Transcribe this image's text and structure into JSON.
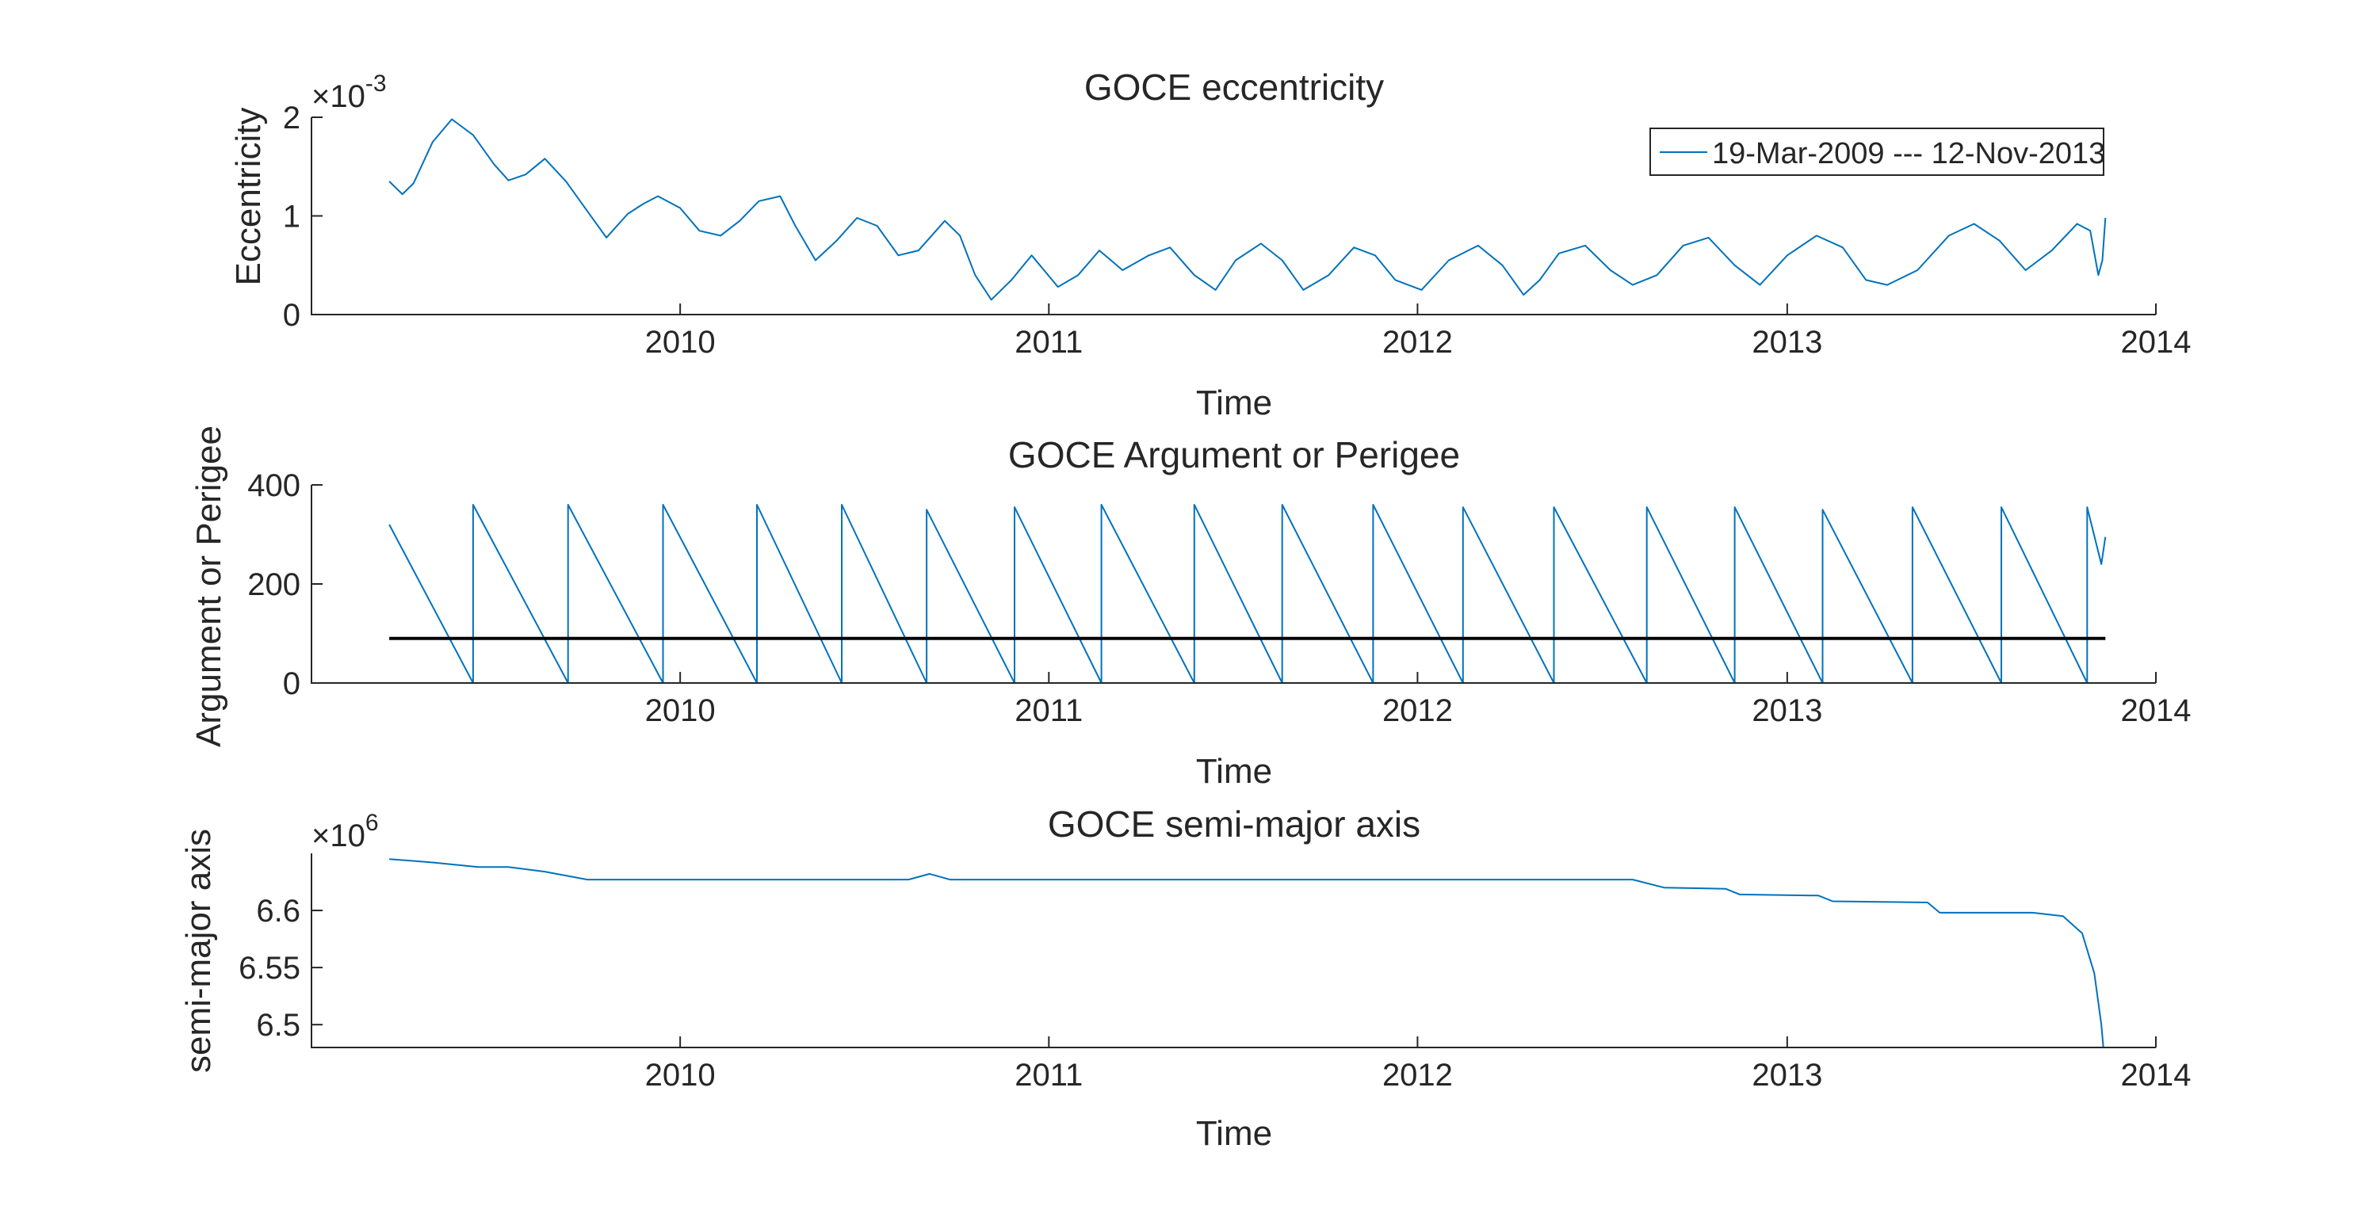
{
  "chart_data": [
    {
      "type": "line",
      "title": "GOCE eccentricity",
      "xlabel": "Time",
      "ylabel": "Eccentricity",
      "y_exponent": {
        "base": "×10",
        "power": "-3"
      },
      "xlim": [
        "2009-01-01",
        "2014-01-01"
      ],
      "ylim": [
        0,
        0.002
      ],
      "xticks": [
        {
          "date": "2010-01-01",
          "label": "2010"
        },
        {
          "date": "2011-01-01",
          "label": "2011"
        },
        {
          "date": "2012-01-01",
          "label": "2012"
        },
        {
          "date": "2013-01-01",
          "label": "2013"
        },
        {
          "date": "2014-01-01",
          "label": "2014"
        }
      ],
      "yticks": [
        {
          "value": 0,
          "label": "0"
        },
        {
          "value": 0.001,
          "label": "1"
        },
        {
          "value": 0.002,
          "label": "2"
        }
      ],
      "grid": false,
      "legend_position": "top-right",
      "legend": [
        "19-Mar-2009 --- 12-Nov-2013"
      ],
      "series": [
        {
          "name": "19-Mar-2009 --- 12-Nov-2013",
          "color": "#0072BD",
          "points": [
            [
              "2009-03-19",
              0.00135
            ],
            [
              "2009-04-01",
              0.00122
            ],
            [
              "2009-04-12",
              0.00133
            ],
            [
              "2009-05-01",
              0.00175
            ],
            [
              "2009-05-20",
              0.00198
            ],
            [
              "2009-06-10",
              0.00182
            ],
            [
              "2009-07-01",
              0.00152
            ],
            [
              "2009-07-15",
              0.00136
            ],
            [
              "2009-08-01",
              0.00142
            ],
            [
              "2009-08-20",
              0.00158
            ],
            [
              "2009-09-10",
              0.00135
            ],
            [
              "2009-10-01",
              0.00105
            ],
            [
              "2009-10-20",
              0.00078
            ],
            [
              "2009-11-10",
              0.00102
            ],
            [
              "2009-11-25",
              0.00112
            ],
            [
              "2009-12-10",
              0.0012
            ],
            [
              "2010-01-01",
              0.00108
            ],
            [
              "2010-01-20",
              0.00085
            ],
            [
              "2010-02-10",
              0.0008
            ],
            [
              "2010-03-01",
              0.00095
            ],
            [
              "2010-03-20",
              0.00115
            ],
            [
              "2010-04-10",
              0.0012
            ],
            [
              "2010-04-25",
              0.0009
            ],
            [
              "2010-05-15",
              0.00055
            ],
            [
              "2010-06-05",
              0.00075
            ],
            [
              "2010-06-25",
              0.00098
            ],
            [
              "2010-07-15",
              0.0009
            ],
            [
              "2010-08-05",
              0.0006
            ],
            [
              "2010-08-25",
              0.00065
            ],
            [
              "2010-09-20",
              0.00095
            ],
            [
              "2010-10-05",
              0.0008
            ],
            [
              "2010-10-20",
              0.0004
            ],
            [
              "2010-11-05",
              0.00015
            ],
            [
              "2010-11-25",
              0.00035
            ],
            [
              "2010-12-15",
              0.0006
            ],
            [
              "2011-01-10",
              0.00028
            ],
            [
              "2011-01-30",
              0.0004
            ],
            [
              "2011-02-20",
              0.00065
            ],
            [
              "2011-03-15",
              0.00045
            ],
            [
              "2011-04-10",
              0.0006
            ],
            [
              "2011-05-01",
              0.00068
            ],
            [
              "2011-05-25",
              0.0004
            ],
            [
              "2011-06-15",
              0.00025
            ],
            [
              "2011-07-05",
              0.00055
            ],
            [
              "2011-07-30",
              0.00072
            ],
            [
              "2011-08-20",
              0.00055
            ],
            [
              "2011-09-10",
              0.00025
            ],
            [
              "2011-10-05",
              0.0004
            ],
            [
              "2011-10-30",
              0.00068
            ],
            [
              "2011-11-20",
              0.0006
            ],
            [
              "2011-12-10",
              0.00035
            ],
            [
              "2012-01-05",
              0.00025
            ],
            [
              "2012-02-01",
              0.00055
            ],
            [
              "2012-03-01",
              0.0007
            ],
            [
              "2012-03-25",
              0.0005
            ],
            [
              "2012-04-15",
              0.0002
            ],
            [
              "2012-05-01",
              0.00035
            ],
            [
              "2012-05-20",
              0.00062
            ],
            [
              "2012-06-15",
              0.0007
            ],
            [
              "2012-07-10",
              0.00045
            ],
            [
              "2012-08-01",
              0.0003
            ],
            [
              "2012-08-25",
              0.0004
            ],
            [
              "2012-09-20",
              0.0007
            ],
            [
              "2012-10-15",
              0.00078
            ],
            [
              "2012-11-10",
              0.0005
            ],
            [
              "2012-12-05",
              0.0003
            ],
            [
              "2013-01-01",
              0.0006
            ],
            [
              "2013-01-30",
              0.0008
            ],
            [
              "2013-02-25",
              0.00068
            ],
            [
              "2013-03-20",
              0.00035
            ],
            [
              "2013-04-10",
              0.0003
            ],
            [
              "2013-05-10",
              0.00045
            ],
            [
              "2013-06-10",
              0.0008
            ],
            [
              "2013-07-05",
              0.00092
            ],
            [
              "2013-07-30",
              0.00075
            ],
            [
              "2013-08-25",
              0.00045
            ],
            [
              "2013-09-20",
              0.00065
            ],
            [
              "2013-10-15",
              0.00092
            ],
            [
              "2013-10-28",
              0.00085
            ],
            [
              "2013-11-05",
              0.0004
            ],
            [
              "2013-11-09",
              0.00055
            ],
            [
              "2013-11-12",
              0.00098
            ]
          ]
        }
      ]
    },
    {
      "type": "line",
      "title": "GOCE Argument or Perigee",
      "xlabel": "Time",
      "ylabel": "Argument or Perigee",
      "xlim": [
        "2009-01-01",
        "2014-01-01"
      ],
      "ylim": [
        0,
        400
      ],
      "xticks": [
        {
          "date": "2010-01-01",
          "label": "2010"
        },
        {
          "date": "2011-01-01",
          "label": "2011"
        },
        {
          "date": "2012-01-01",
          "label": "2012"
        },
        {
          "date": "2013-01-01",
          "label": "2013"
        },
        {
          "date": "2014-01-01",
          "label": "2014"
        }
      ],
      "yticks": [
        {
          "value": 0,
          "label": "0"
        },
        {
          "value": 200,
          "label": "200"
        },
        {
          "value": 400,
          "label": "400"
        }
      ],
      "grid": false,
      "series": [
        {
          "color": "#0072BD",
          "points": [
            [
              "2009-03-19",
              320
            ],
            [
              "2009-06-10",
              0
            ],
            [
              "2009-06-10",
              360
            ],
            [
              "2009-09-12",
              0
            ],
            [
              "2009-09-12",
              360
            ],
            [
              "2009-12-15",
              0
            ],
            [
              "2009-12-15",
              360
            ],
            [
              "2010-03-18",
              0
            ],
            [
              "2010-03-18",
              360
            ],
            [
              "2010-06-10",
              0
            ],
            [
              "2010-06-10",
              360
            ],
            [
              "2010-09-02",
              0
            ],
            [
              "2010-09-02",
              350
            ],
            [
              "2010-11-28",
              0
            ],
            [
              "2010-11-28",
              355
            ],
            [
              "2011-02-22",
              0
            ],
            [
              "2011-02-22",
              360
            ],
            [
              "2011-05-25",
              0
            ],
            [
              "2011-05-25",
              360
            ],
            [
              "2011-08-20",
              0
            ],
            [
              "2011-08-20",
              360
            ],
            [
              "2011-11-18",
              0
            ],
            [
              "2011-11-18",
              360
            ],
            [
              "2012-02-15",
              0
            ],
            [
              "2012-02-15",
              355
            ],
            [
              "2012-05-15",
              0
            ],
            [
              "2012-05-15",
              355
            ],
            [
              "2012-08-15",
              0
            ],
            [
              "2012-08-15",
              355
            ],
            [
              "2012-11-10",
              0
            ],
            [
              "2012-11-10",
              355
            ],
            [
              "2013-02-05",
              0
            ],
            [
              "2013-02-05",
              350
            ],
            [
              "2013-05-05",
              0
            ],
            [
              "2013-05-05",
              355
            ],
            [
              "2013-08-01",
              0
            ],
            [
              "2013-08-01",
              355
            ],
            [
              "2013-10-25",
              0
            ],
            [
              "2013-10-25",
              355
            ],
            [
              "2013-11-08",
              240
            ],
            [
              "2013-11-12",
              295
            ]
          ]
        },
        {
          "color": "#000000",
          "points": [
            [
              "2009-03-19",
              90
            ],
            [
              "2013-11-12",
              90
            ]
          ]
        }
      ]
    },
    {
      "type": "line",
      "title": "GOCE semi-major axis",
      "xlabel": "Time",
      "ylabel": "semi-major axis",
      "y_exponent": {
        "base": "×10",
        "power": "6"
      },
      "xlim": [
        "2009-01-01",
        "2014-01-01"
      ],
      "ylim": [
        6480000,
        6650000
      ],
      "xticks": [
        {
          "date": "2010-01-01",
          "label": "2010"
        },
        {
          "date": "2011-01-01",
          "label": "2011"
        },
        {
          "date": "2012-01-01",
          "label": "2012"
        },
        {
          "date": "2013-01-01",
          "label": "2013"
        },
        {
          "date": "2014-01-01",
          "label": "2014"
        }
      ],
      "yticks": [
        {
          "value": 6500000,
          "label": "6.5"
        },
        {
          "value": 6550000,
          "label": "6.55"
        },
        {
          "value": 6600000,
          "label": "6.6"
        }
      ],
      "grid": false,
      "series": [
        {
          "color": "#0072BD",
          "points": [
            [
              "2009-03-19",
              6645000
            ],
            [
              "2009-05-01",
              6642000
            ],
            [
              "2009-06-15",
              6638000
            ],
            [
              "2009-07-15",
              6638000
            ],
            [
              "2009-08-20",
              6634000
            ],
            [
              "2009-10-01",
              6627000
            ],
            [
              "2010-07-01",
              6627000
            ],
            [
              "2010-08-15",
              6627000
            ],
            [
              "2010-09-05",
              6632000
            ],
            [
              "2010-09-25",
              6627000
            ],
            [
              "2012-08-01",
              6627000
            ],
            [
              "2012-09-01",
              6620000
            ],
            [
              "2012-11-01",
              6619000
            ],
            [
              "2012-11-15",
              6614000
            ],
            [
              "2013-02-01",
              6613000
            ],
            [
              "2013-02-15",
              6608000
            ],
            [
              "2013-05-20",
              6607000
            ],
            [
              "2013-06-01",
              6598000
            ],
            [
              "2013-09-01",
              6598000
            ],
            [
              "2013-10-01",
              6595000
            ],
            [
              "2013-10-20",
              6580000
            ],
            [
              "2013-11-01",
              6545000
            ],
            [
              "2013-11-08",
              6500000
            ],
            [
              "2013-11-10",
              6480000
            ]
          ]
        }
      ]
    }
  ]
}
